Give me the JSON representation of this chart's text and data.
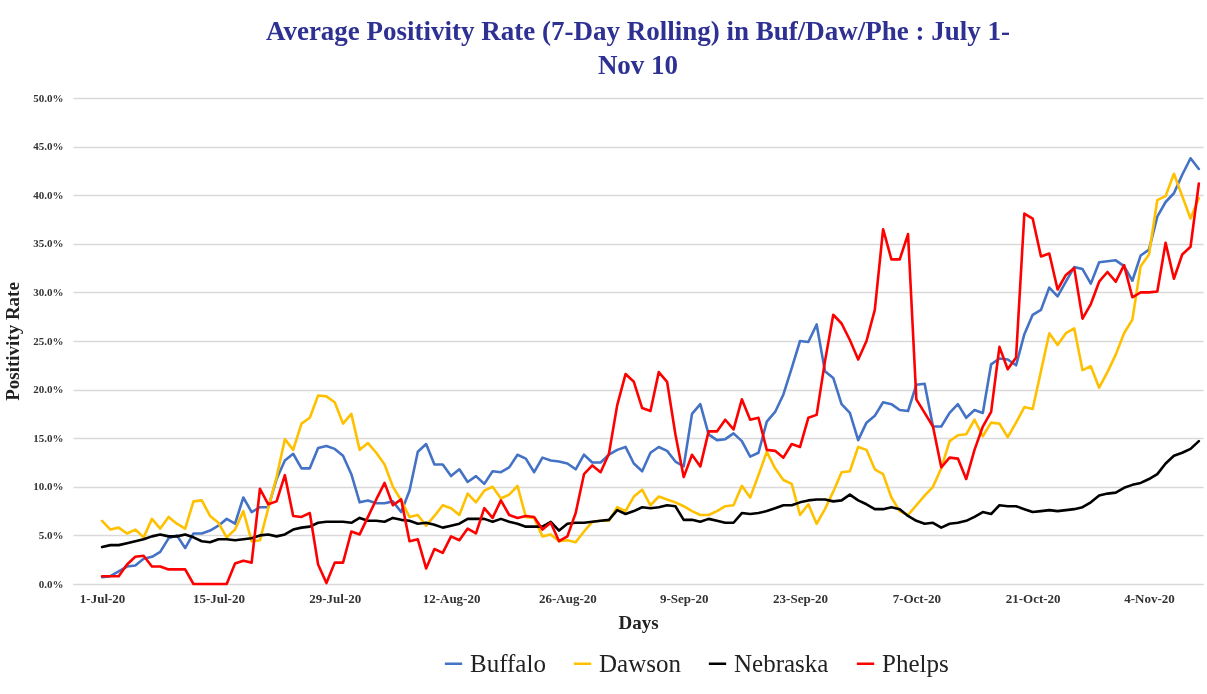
{
  "chart_data": {
    "type": "line",
    "title": "Average Positivity Rate (7-Day Rolling) in Buf/Daw/Phe : July 1-Nov 10",
    "xlabel": "Days",
    "ylabel": "Positivity Rate",
    "x": [
      "--07-01",
      "--07-02",
      "--07-03",
      "--07-04",
      "--07-05",
      "--07-06",
      "--07-07",
      "--07-08",
      "--07-09",
      "--07-10",
      "--07-11",
      "--07-12",
      "--07-13",
      "--07-14",
      "--07-15",
      "--07-16",
      "--07-17",
      "--07-18",
      "--07-19",
      "--07-20",
      "--07-21",
      "--07-22",
      "--07-23",
      "--07-24",
      "--07-25",
      "--07-26",
      "--07-27",
      "--07-28",
      "--07-29",
      "--07-30",
      "--07-31",
      "--08-01",
      "--08-02",
      "--08-03",
      "--08-04",
      "--08-05",
      "--08-06",
      "--08-07",
      "--08-08",
      "--08-09",
      "--08-10",
      "--08-11",
      "--08-12",
      "--08-13",
      "--08-14",
      "--08-15",
      "--08-16",
      "--08-17",
      "--08-18",
      "--08-19",
      "--08-20",
      "--08-21",
      "--08-22",
      "--08-23",
      "--08-24",
      "--08-25",
      "--08-26",
      "--08-27",
      "--08-28",
      "--08-29",
      "--08-30",
      "--08-31",
      "--09-01",
      "--09-02",
      "--09-03",
      "--09-04",
      "--09-05",
      "--09-06",
      "--09-07",
      "--09-08",
      "--09-09",
      "--09-10",
      "--09-11",
      "--09-12",
      "--09-13",
      "--09-14",
      "--09-15",
      "--09-16",
      "--09-17",
      "--09-18",
      "--09-19",
      "--09-20",
      "--09-21",
      "--09-22",
      "--09-23",
      "--09-24",
      "--09-25",
      "--09-26",
      "--09-27",
      "--09-28",
      "--09-29",
      "--09-30",
      "--10-01",
      "--10-02",
      "--10-03",
      "--10-04",
      "--10-05",
      "--10-06",
      "--10-07",
      "--10-08",
      "--10-09",
      "--10-10",
      "--10-11",
      "--10-12",
      "--10-13",
      "--10-14",
      "--10-15",
      "--10-16",
      "--10-17",
      "--10-18",
      "--10-19",
      "--10-20",
      "--10-21",
      "--10-22",
      "--10-23",
      "--10-24",
      "--10-25",
      "--10-26",
      "--10-27",
      "--10-28",
      "--10-29",
      "--10-30",
      "--10-31",
      "--11-01",
      "--11-02",
      "--11-03",
      "--11-04",
      "--11-05",
      "--11-06",
      "--11-07",
      "--11-08",
      "--11-09",
      "--11-10"
    ],
    "series": [
      {
        "name": "Buffalo",
        "color": "#4472c4",
        "values": [
          0.7,
          0.8,
          1.3,
          1.8,
          1.9,
          2.6,
          2.8,
          3.3,
          4.7,
          5.0,
          3.7,
          5.2,
          5.2,
          5.5,
          6.0,
          6.7,
          6.2,
          8.9,
          7.4,
          7.9,
          7.9,
          10.8,
          12.7,
          13.4,
          11.9,
          11.9,
          14.0,
          14.2,
          13.9,
          13.2,
          11.3,
          8.4,
          8.6,
          8.3,
          8.3,
          8.5,
          7.4,
          9.6,
          13.6,
          14.4,
          12.3,
          12.3,
          11.1,
          11.8,
          10.5,
          11.1,
          10.3,
          11.6,
          11.5,
          12.0,
          13.3,
          12.9,
          11.5,
          13.0,
          12.7,
          12.6,
          12.4,
          11.8,
          13.3,
          12.5,
          12.5,
          13.3,
          13.8,
          14.1,
          12.4,
          11.6,
          13.5,
          14.1,
          13.7,
          12.6,
          12.1,
          17.5,
          18.5,
          15.4,
          14.8,
          14.9,
          15.5,
          14.7,
          13.1,
          13.5,
          16.7,
          17.7,
          19.5,
          22.2,
          25.0,
          24.9,
          26.7,
          21.9,
          21.2,
          18.5,
          17.6,
          14.8,
          16.6,
          17.3,
          18.7,
          18.5,
          17.9,
          17.8,
          20.5,
          20.6,
          16.2,
          16.2,
          17.6,
          18.5,
          17.1,
          17.9,
          17.6,
          22.6,
          23.2,
          23.1,
          22.5,
          25.7,
          27.7,
          28.2,
          30.5,
          29.6,
          31.1,
          32.6,
          32.4,
          30.9,
          33.1,
          33.2,
          33.3,
          32.7,
          31.2,
          33.8,
          34.4,
          37.8,
          39.3,
          40.2,
          42.1,
          43.8,
          42.7
        ]
      },
      {
        "name": "Dawson",
        "color": "#ffc000",
        "values": [
          6.5,
          5.6,
          5.8,
          5.2,
          5.6,
          4.8,
          6.7,
          5.7,
          6.9,
          6.2,
          5.7,
          8.5,
          8.6,
          7.0,
          6.3,
          4.8,
          5.6,
          7.5,
          4.4,
          4.5,
          7.8,
          11.0,
          14.9,
          13.8,
          16.5,
          17.1,
          19.4,
          19.3,
          18.7,
          16.5,
          17.5,
          13.8,
          14.5,
          13.5,
          12.3,
          10.0,
          8.6,
          6.9,
          7.1,
          6.0,
          7.0,
          8.1,
          7.8,
          7.1,
          9.3,
          8.4,
          9.6,
          10.0,
          8.8,
          9.2,
          10.1,
          6.9,
          6.8,
          4.9,
          5.1,
          4.4,
          4.5,
          4.3,
          5.4,
          6.4,
          6.5,
          6.5,
          7.9,
          7.5,
          9.0,
          9.7,
          8.1,
          9.0,
          8.7,
          8.4,
          8.0,
          7.5,
          7.1,
          7.1,
          7.5,
          8.0,
          8.1,
          10.1,
          8.9,
          11.2,
          13.6,
          11.9,
          10.7,
          10.3,
          7.1,
          8.2,
          6.2,
          7.7,
          9.5,
          11.5,
          11.6,
          14.1,
          13.8,
          11.8,
          11.3,
          8.9,
          7.5,
          7.1,
          8.1,
          9.1,
          10.0,
          11.9,
          14.7,
          15.3,
          15.4,
          16.9,
          15.2,
          16.6,
          16.5,
          15.1,
          16.6,
          18.2,
          18.0,
          21.9,
          25.8,
          24.6,
          25.8,
          26.3,
          22.0,
          22.4,
          20.2,
          21.8,
          23.6,
          25.8,
          27.2,
          32.7,
          33.9,
          39.5,
          39.9,
          42.2,
          39.9,
          37.6,
          39.7
        ]
      },
      {
        "name": "Nebraska",
        "color": "#000000",
        "values": [
          3.8,
          4.0,
          4.0,
          4.2,
          4.4,
          4.6,
          4.9,
          5.1,
          4.9,
          4.9,
          5.1,
          4.8,
          4.4,
          4.3,
          4.6,
          4.6,
          4.5,
          4.6,
          4.7,
          5.0,
          5.1,
          4.9,
          5.1,
          5.6,
          5.8,
          5.9,
          6.3,
          6.4,
          6.4,
          6.4,
          6.3,
          6.8,
          6.5,
          6.5,
          6.4,
          6.8,
          6.6,
          6.5,
          6.2,
          6.3,
          6.1,
          5.8,
          6.0,
          6.2,
          6.7,
          6.7,
          6.7,
          6.4,
          6.7,
          6.4,
          6.2,
          5.9,
          5.9,
          5.9,
          6.4,
          5.5,
          6.2,
          6.3,
          6.3,
          6.4,
          6.5,
          6.6,
          7.6,
          7.2,
          7.5,
          7.9,
          7.8,
          7.9,
          8.1,
          8.0,
          6.6,
          6.6,
          6.4,
          6.7,
          6.5,
          6.3,
          6.3,
          7.3,
          7.2,
          7.3,
          7.5,
          7.8,
          8.1,
          8.1,
          8.4,
          8.6,
          8.7,
          8.7,
          8.5,
          8.6,
          9.2,
          8.6,
          8.2,
          7.7,
          7.7,
          7.9,
          7.7,
          7.0,
          6.5,
          6.2,
          6.3,
          5.8,
          6.2,
          6.3,
          6.5,
          6.9,
          7.4,
          7.2,
          8.1,
          8.0,
          8.0,
          7.7,
          7.4,
          7.5,
          7.6,
          7.5,
          7.6,
          7.7,
          7.9,
          8.4,
          9.1,
          9.3,
          9.4,
          9.9,
          10.2,
          10.4,
          10.8,
          11.3,
          12.4,
          13.2,
          13.5,
          13.9,
          14.7
        ]
      },
      {
        "name": "Phelps",
        "color": "#ff0000",
        "values": [
          0.8,
          0.8,
          0.8,
          2.0,
          2.8,
          2.9,
          1.8,
          1.8,
          1.5,
          1.5,
          1.5,
          0,
          0,
          0,
          0,
          0,
          2.1,
          2.4,
          2.2,
          9.8,
          8.2,
          8.5,
          11.2,
          7.0,
          6.9,
          7.3,
          2.0,
          0.1,
          2.2,
          2.2,
          5.4,
          5.1,
          6.9,
          8.7,
          10.4,
          8.1,
          8.7,
          4.4,
          4.6,
          1.6,
          3.6,
          3.2,
          4.9,
          4.5,
          5.7,
          5.2,
          7.8,
          6.8,
          8.6,
          7.1,
          6.8,
          7.0,
          6.9,
          5.6,
          6.3,
          4.4,
          4.9,
          7.3,
          11.3,
          12.2,
          11.5,
          13.4,
          18.4,
          21.6,
          20.8,
          18.1,
          17.8,
          21.8,
          20.8,
          15.4,
          11.0,
          13.3,
          12.1,
          15.7,
          15.7,
          16.9,
          15.9,
          19.0,
          16.9,
          17.1,
          13.8,
          13.7,
          13.0,
          14.4,
          14.1,
          17.1,
          17.4,
          22.9,
          27.7,
          26.8,
          25.1,
          23.1,
          25.0,
          28.2,
          36.5,
          33.4,
          33.4,
          36.0,
          19.0,
          17.6,
          16.2,
          12.0,
          13.0,
          12.9,
          10.8,
          13.8,
          16.2,
          17.7,
          24.4,
          22.1,
          23.3,
          38.1,
          37.6,
          33.7,
          34.0,
          30.3,
          31.8,
          32.5,
          27.3,
          28.8,
          31.1,
          32.1,
          31.1,
          32.8,
          29.5,
          30.0,
          30.0,
          30.1,
          35.1,
          31.4,
          33.9,
          34.7,
          41.2
        ]
      }
    ],
    "xlim": [
      "--06-27T12:00",
      "--11-10T12:00"
    ],
    "xticks": [
      {
        "value": "--07-01",
        "label": "1-Jul-20"
      },
      {
        "value": "--07-15",
        "label": "15-Jul-20"
      },
      {
        "value": "--07-29",
        "label": "29-Jul-20"
      },
      {
        "value": "--08-12",
        "label": "12-Aug-20"
      },
      {
        "value": "--08-26",
        "label": "26-Aug-20"
      },
      {
        "value": "--09-09",
        "label": "9-Sep-20"
      },
      {
        "value": "--09-23",
        "label": "23-Sep-20"
      },
      {
        "value": "--10-07",
        "label": "7-Oct-20"
      },
      {
        "value": "--10-21",
        "label": "21-Oct-20"
      },
      {
        "value": "--11-04",
        "label": "4-Nov-20"
      }
    ],
    "ylim": [
      0,
      50
    ],
    "yticks": [
      {
        "value": 0,
        "label": "0.0%"
      },
      {
        "value": 5,
        "label": "5.0%"
      },
      {
        "value": 10,
        "label": "10.0%"
      },
      {
        "value": 15,
        "label": "15.0%"
      },
      {
        "value": 20,
        "label": "20.0%"
      },
      {
        "value": 25,
        "label": "25.0%"
      },
      {
        "value": 30,
        "label": "30.0%"
      },
      {
        "value": 35,
        "label": "35.0%"
      },
      {
        "value": 40,
        "label": "40.0%"
      },
      {
        "value": 45,
        "label": "45.0%"
      },
      {
        "value": 50,
        "label": "50.0%"
      }
    ],
    "grid": "y",
    "legend": "bottom",
    "marker": "none"
  }
}
